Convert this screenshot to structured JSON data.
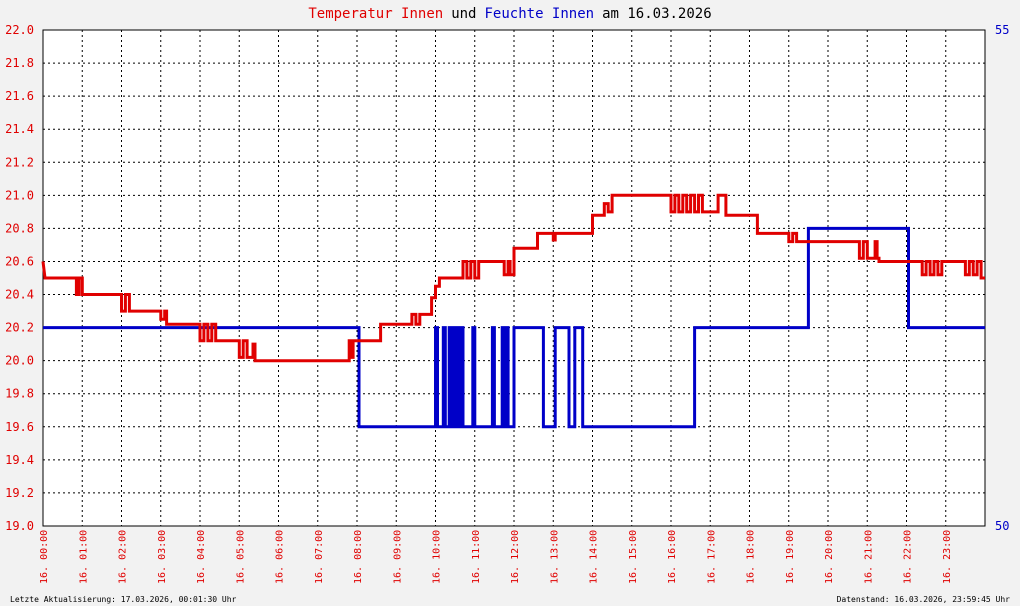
{
  "chart_data": {
    "type": "line",
    "title": {
      "temp_word": "Temperatur Innen",
      "und": "und",
      "humid_word": "Feuchte Innen",
      "date_part": "am 16.03.2026"
    },
    "colors": {
      "temperature": "#e00000",
      "humidity": "#0000c8",
      "background": "#ffffff",
      "frame": "#f2f2f2"
    },
    "x_range": [
      0,
      24
    ],
    "x_tick_labels": [
      "16. 00:00",
      "16. 01:00",
      "16. 02:00",
      "16. 03:00",
      "16. 04:00",
      "16. 05:00",
      "16. 06:00",
      "16. 07:00",
      "16. 08:00",
      "16. 09:00",
      "16. 10:00",
      "16. 11:00",
      "16. 12:00",
      "16. 13:00",
      "16. 14:00",
      "16. 15:00",
      "16. 16:00",
      "16. 17:00",
      "16. 18:00",
      "16. 19:00",
      "16. 20:00",
      "16. 21:00",
      "16. 22:00",
      "16. 23:00"
    ],
    "y_left": {
      "range": [
        19.0,
        22.0
      ],
      "tick_labels": [
        "19.0",
        "19.2",
        "19.4",
        "19.6",
        "19.8",
        "20.0",
        "20.2",
        "20.4",
        "20.6",
        "20.8",
        "21.0",
        "21.2",
        "21.4",
        "21.6",
        "21.8",
        "22.0"
      ]
    },
    "y_right": {
      "range": [
        50,
        55
      ],
      "tick_labels": [
        "50",
        "55"
      ]
    },
    "grid": true,
    "series": [
      {
        "name": "Temperatur Innen",
        "axis": "left",
        "points": [
          [
            0.0,
            20.6
          ],
          [
            0.05,
            20.5
          ],
          [
            0.85,
            20.5
          ],
          [
            0.85,
            20.4
          ],
          [
            0.92,
            20.4
          ],
          [
            0.92,
            20.5
          ],
          [
            1.0,
            20.5
          ],
          [
            1.0,
            20.4
          ],
          [
            2.0,
            20.4
          ],
          [
            2.0,
            20.3
          ],
          [
            2.1,
            20.3
          ],
          [
            2.1,
            20.4
          ],
          [
            2.2,
            20.4
          ],
          [
            2.2,
            20.3
          ],
          [
            3.0,
            20.3
          ],
          [
            3.0,
            20.25
          ],
          [
            3.1,
            20.25
          ],
          [
            3.1,
            20.3
          ],
          [
            3.15,
            20.3
          ],
          [
            3.15,
            20.22
          ],
          [
            4.0,
            20.22
          ],
          [
            4.0,
            20.12
          ],
          [
            4.1,
            20.12
          ],
          [
            4.1,
            20.22
          ],
          [
            4.2,
            20.22
          ],
          [
            4.2,
            20.12
          ],
          [
            4.3,
            20.12
          ],
          [
            4.3,
            20.22
          ],
          [
            4.4,
            20.22
          ],
          [
            4.4,
            20.12
          ],
          [
            5.0,
            20.12
          ],
          [
            5.0,
            20.02
          ],
          [
            5.1,
            20.02
          ],
          [
            5.1,
            20.12
          ],
          [
            5.2,
            20.12
          ],
          [
            5.2,
            20.02
          ],
          [
            5.35,
            20.02
          ],
          [
            5.35,
            20.1
          ],
          [
            5.4,
            20.1
          ],
          [
            5.4,
            20.0
          ],
          [
            7.8,
            20.0
          ],
          [
            7.8,
            20.12
          ],
          [
            7.85,
            20.12
          ],
          [
            7.85,
            20.02
          ],
          [
            7.9,
            20.02
          ],
          [
            7.9,
            20.12
          ],
          [
            8.6,
            20.12
          ],
          [
            8.6,
            20.22
          ],
          [
            9.4,
            20.22
          ],
          [
            9.4,
            20.28
          ],
          [
            9.5,
            20.28
          ],
          [
            9.5,
            20.22
          ],
          [
            9.6,
            20.22
          ],
          [
            9.6,
            20.28
          ],
          [
            9.9,
            20.28
          ],
          [
            9.9,
            20.38
          ],
          [
            10.0,
            20.38
          ],
          [
            10.0,
            20.45
          ],
          [
            10.1,
            20.45
          ],
          [
            10.1,
            20.5
          ],
          [
            10.7,
            20.5
          ],
          [
            10.7,
            20.6
          ],
          [
            10.8,
            20.6
          ],
          [
            10.8,
            20.5
          ],
          [
            10.9,
            20.5
          ],
          [
            10.9,
            20.6
          ],
          [
            11.0,
            20.6
          ],
          [
            11.0,
            20.5
          ],
          [
            11.1,
            20.5
          ],
          [
            11.1,
            20.6
          ],
          [
            11.75,
            20.6
          ],
          [
            11.75,
            20.52
          ],
          [
            11.85,
            20.52
          ],
          [
            11.85,
            20.6
          ],
          [
            11.9,
            20.6
          ],
          [
            11.9,
            20.52
          ],
          [
            12.0,
            20.52
          ],
          [
            12.0,
            20.68
          ],
          [
            12.6,
            20.68
          ],
          [
            12.6,
            20.77
          ],
          [
            13.0,
            20.77
          ],
          [
            13.0,
            20.73
          ],
          [
            13.05,
            20.73
          ],
          [
            13.05,
            20.77
          ],
          [
            14.0,
            20.77
          ],
          [
            14.0,
            20.88
          ],
          [
            14.3,
            20.88
          ],
          [
            14.3,
            20.95
          ],
          [
            14.4,
            20.95
          ],
          [
            14.4,
            20.9
          ],
          [
            14.5,
            20.9
          ],
          [
            14.5,
            21.0
          ],
          [
            16.0,
            21.0
          ],
          [
            16.0,
            20.9
          ],
          [
            16.1,
            20.9
          ],
          [
            16.1,
            21.0
          ],
          [
            16.2,
            21.0
          ],
          [
            16.2,
            20.9
          ],
          [
            16.3,
            20.9
          ],
          [
            16.3,
            21.0
          ],
          [
            16.4,
            21.0
          ],
          [
            16.4,
            20.9
          ],
          [
            16.5,
            20.9
          ],
          [
            16.5,
            21.0
          ],
          [
            16.6,
            21.0
          ],
          [
            16.6,
            20.9
          ],
          [
            16.7,
            20.9
          ],
          [
            16.7,
            21.0
          ],
          [
            16.8,
            21.0
          ],
          [
            16.8,
            20.9
          ],
          [
            17.2,
            20.9
          ],
          [
            17.2,
            21.0
          ],
          [
            17.4,
            21.0
          ],
          [
            17.4,
            20.88
          ],
          [
            18.2,
            20.88
          ],
          [
            18.2,
            20.77
          ],
          [
            19.0,
            20.77
          ],
          [
            19.0,
            20.72
          ],
          [
            19.1,
            20.72
          ],
          [
            19.1,
            20.77
          ],
          [
            19.2,
            20.77
          ],
          [
            19.2,
            20.72
          ],
          [
            20.8,
            20.72
          ],
          [
            20.8,
            20.62
          ],
          [
            20.9,
            20.62
          ],
          [
            20.9,
            20.72
          ],
          [
            21.0,
            20.72
          ],
          [
            21.0,
            20.62
          ],
          [
            21.2,
            20.62
          ],
          [
            21.2,
            20.72
          ],
          [
            21.25,
            20.72
          ],
          [
            21.25,
            20.62
          ],
          [
            21.3,
            20.62
          ],
          [
            21.3,
            20.6
          ],
          [
            22.4,
            20.6
          ],
          [
            22.4,
            20.52
          ],
          [
            22.5,
            20.52
          ],
          [
            22.5,
            20.6
          ],
          [
            22.6,
            20.6
          ],
          [
            22.6,
            20.52
          ],
          [
            22.7,
            20.52
          ],
          [
            22.7,
            20.6
          ],
          [
            22.8,
            20.6
          ],
          [
            22.8,
            20.52
          ],
          [
            22.9,
            20.52
          ],
          [
            22.9,
            20.6
          ],
          [
            23.5,
            20.6
          ],
          [
            23.5,
            20.52
          ],
          [
            23.6,
            20.52
          ],
          [
            23.6,
            20.6
          ],
          [
            23.7,
            20.6
          ],
          [
            23.7,
            20.52
          ],
          [
            23.8,
            20.52
          ],
          [
            23.8,
            20.6
          ],
          [
            23.9,
            20.6
          ],
          [
            23.9,
            20.5
          ],
          [
            24.0,
            20.5
          ]
        ]
      },
      {
        "name": "Feuchte Innen",
        "axis": "right",
        "points": [
          [
            0.0,
            52.0
          ],
          [
            8.05,
            52.0
          ],
          [
            8.05,
            51.0
          ],
          [
            10.0,
            51.0
          ],
          [
            10.0,
            52.0
          ],
          [
            10.05,
            52.0
          ],
          [
            10.05,
            51.0
          ],
          [
            10.2,
            51.0
          ],
          [
            10.2,
            52.0
          ],
          [
            10.25,
            52.0
          ],
          [
            10.25,
            51.0
          ],
          [
            10.35,
            51.0
          ],
          [
            10.35,
            52.0
          ],
          [
            10.4,
            52.0
          ],
          [
            10.4,
            51.0
          ],
          [
            10.45,
            51.0
          ],
          [
            10.45,
            52.0
          ],
          [
            10.5,
            52.0
          ],
          [
            10.5,
            51.0
          ],
          [
            10.55,
            51.0
          ],
          [
            10.55,
            52.0
          ],
          [
            10.6,
            52.0
          ],
          [
            10.6,
            51.0
          ],
          [
            10.65,
            51.0
          ],
          [
            10.65,
            52.0
          ],
          [
            10.7,
            52.0
          ],
          [
            10.7,
            51.0
          ],
          [
            10.95,
            51.0
          ],
          [
            10.95,
            52.0
          ],
          [
            11.0,
            52.0
          ],
          [
            11.0,
            51.0
          ],
          [
            11.45,
            51.0
          ],
          [
            11.45,
            52.0
          ],
          [
            11.5,
            52.0
          ],
          [
            11.5,
            51.0
          ],
          [
            11.7,
            51.0
          ],
          [
            11.7,
            52.0
          ],
          [
            11.75,
            52.0
          ],
          [
            11.75,
            51.0
          ],
          [
            11.8,
            51.0
          ],
          [
            11.8,
            52.0
          ],
          [
            11.85,
            52.0
          ],
          [
            11.85,
            51.0
          ],
          [
            12.0,
            51.0
          ],
          [
            12.0,
            52.0
          ],
          [
            12.75,
            52.0
          ],
          [
            12.75,
            51.0
          ],
          [
            13.05,
            51.0
          ],
          [
            13.05,
            52.0
          ],
          [
            13.4,
            52.0
          ],
          [
            13.4,
            51.0
          ],
          [
            13.55,
            51.0
          ],
          [
            13.55,
            52.0
          ],
          [
            13.75,
            52.0
          ],
          [
            13.75,
            51.0
          ],
          [
            16.6,
            51.0
          ],
          [
            16.6,
            52.0
          ],
          [
            19.5,
            52.0
          ],
          [
            19.5,
            53.0
          ],
          [
            22.05,
            53.0
          ],
          [
            22.05,
            52.0
          ],
          [
            24.0,
            52.0
          ]
        ]
      }
    ]
  },
  "footer": {
    "left": "Letzte Aktualisierung: 17.03.2026, 00:01:30 Uhr",
    "right": "Datenstand: 16.03.2026, 23:59:45 Uhr"
  }
}
